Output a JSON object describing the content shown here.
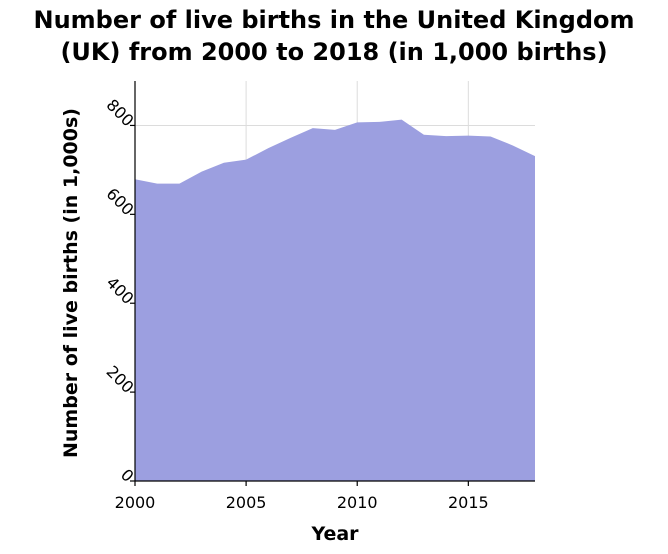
{
  "chart_data": {
    "type": "area",
    "title": [
      "Number of live births in the United Kingdom",
      "(UK) from 2000 to 2018 (in 1,000 births)"
    ],
    "xlabel": "Year",
    "ylabel": "Number of live births (in 1,000s)",
    "x": [
      2000,
      2001,
      2002,
      2003,
      2004,
      2005,
      2006,
      2007,
      2008,
      2009,
      2010,
      2011,
      2012,
      2013,
      2014,
      2015,
      2016,
      2017,
      2018
    ],
    "series": [
      {
        "values": [
          679,
          669,
          669,
          696,
          716,
          723,
          749,
          772,
          794,
          790,
          807,
          808,
          813,
          779,
          776,
          777,
          775,
          755,
          731
        ],
        "color": "#9c9fe0"
      }
    ],
    "xlim": [
      2000,
      2018
    ],
    "ylim": [
      0,
      900
    ],
    "xticks": [
      2000,
      2005,
      2010,
      2015
    ],
    "xtick_labels": [
      "2000",
      "2005",
      "2010",
      "2015"
    ],
    "yticks": [
      0,
      200,
      400,
      600,
      800
    ],
    "ytick_labels": [
      "0",
      "200",
      "400",
      "600",
      "800"
    ],
    "ytick_rotation_deg": 45,
    "grid": true,
    "legend": "none"
  }
}
